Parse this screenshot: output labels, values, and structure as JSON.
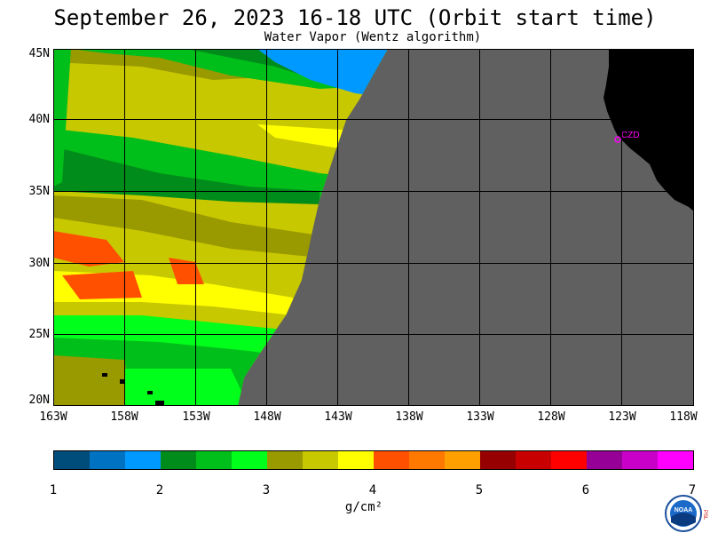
{
  "title": "September 26, 2023  16-18 UTC  (Orbit start time)",
  "subtitle": "Water Vapor (Wentz algorithm)",
  "lat_labels": [
    "45N",
    "40N",
    "35N",
    "30N",
    "25N",
    "20N"
  ],
  "lon_labels": [
    "163W",
    "158W",
    "153W",
    "148W",
    "143W",
    "138W",
    "133W",
    "128W",
    "123W",
    "118W"
  ],
  "station_label": "CZD",
  "colorbar": {
    "tick_labels": [
      "1",
      "2",
      "3",
      "4",
      "5",
      "6",
      "7"
    ],
    "units": "g/cm²",
    "colors": [
      "#004c7a",
      "#0072c2",
      "#0099ff",
      "#008c1a",
      "#00bf1a",
      "#00ff1a",
      "#999900",
      "#c8c800",
      "#ffff00",
      "#ff5000",
      "#ff7800",
      "#ffa000",
      "#960000",
      "#c80000",
      "#ff0000",
      "#960096",
      "#c800c8",
      "#ff00ff"
    ]
  },
  "colors": {
    "no_data": "#606060",
    "land": "#000000",
    "station": "#ff00ff"
  },
  "logo": {
    "text": "NOAA",
    "side_text": "PSL"
  }
}
